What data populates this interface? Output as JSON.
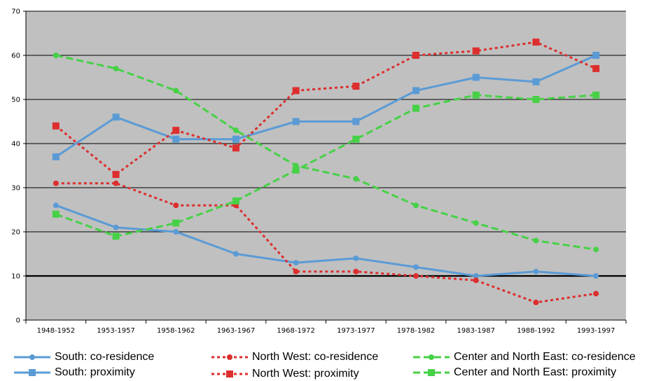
{
  "chart_data": {
    "type": "line",
    "title": "",
    "xlabel": "",
    "ylabel": "",
    "ylim": [
      0,
      70
    ],
    "yticks": [
      0,
      10,
      20,
      30,
      40,
      50,
      60,
      70
    ],
    "grid": true,
    "legend_position": "bottom",
    "plot_background": "#c0c0c0",
    "categories": [
      "1948-1952",
      "1953-1957",
      "1958-1962",
      "1963-1967",
      "1968-1972",
      "1973-1977",
      "1978-1982",
      "1983-1987",
      "1988-1992",
      "1993-1997"
    ],
    "series": [
      {
        "key": "s_cores",
        "name": "South: co-residence",
        "color": "#5b9bd5",
        "style": "solid",
        "marker": "circle",
        "values": [
          26,
          21,
          20,
          15,
          13,
          14,
          12,
          10,
          11,
          10
        ]
      },
      {
        "key": "s_prox",
        "name": "South: proximity",
        "color": "#5b9bd5",
        "style": "solid",
        "marker": "square",
        "values": [
          37,
          46,
          41,
          41,
          45,
          45,
          52,
          55,
          54,
          60
        ]
      },
      {
        "key": "nw_cores",
        "name": "North West: co-residence",
        "color": "#dd2e2e",
        "style": "dotted",
        "marker": "circle",
        "values": [
          31,
          31,
          26,
          26,
          11,
          11,
          10,
          9,
          4,
          6
        ]
      },
      {
        "key": "nw_prox",
        "name": "North West: proximity",
        "color": "#dd2e2e",
        "style": "dotted",
        "marker": "square",
        "values": [
          44,
          33,
          43,
          39,
          52,
          53,
          60,
          61,
          63,
          57
        ]
      },
      {
        "key": "cne_cores",
        "name": "Center and North East: co-residence",
        "color": "#46d146",
        "style": "dashed",
        "marker": "circle",
        "values": [
          60,
          57,
          52,
          43,
          35,
          32,
          26,
          22,
          18,
          16
        ]
      },
      {
        "key": "cne_prox",
        "name": "Center and North East: proximity",
        "color": "#46d146",
        "style": "dashed",
        "marker": "square",
        "values": [
          24,
          19,
          22,
          27,
          34,
          41,
          48,
          51,
          50,
          51
        ]
      }
    ]
  }
}
